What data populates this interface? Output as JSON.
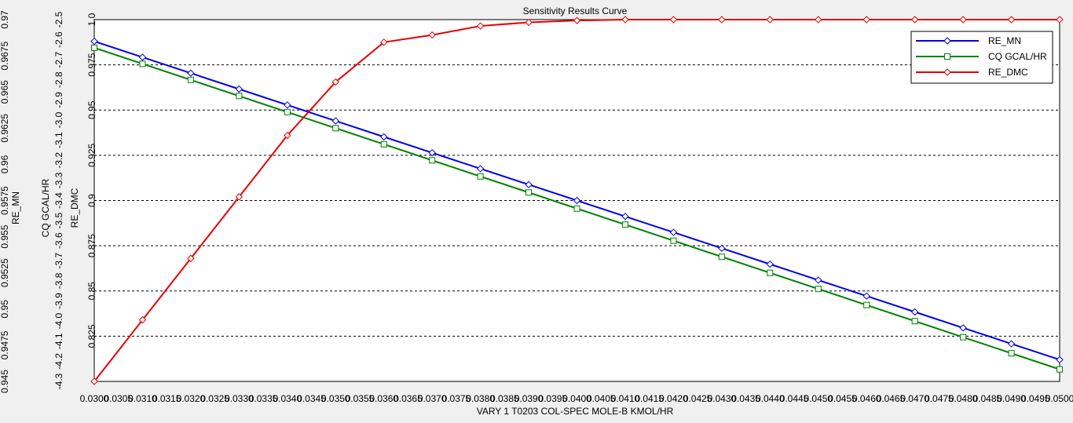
{
  "chart_data": {
    "type": "line",
    "title": "Sensitivity Results Curve",
    "xlabel": "VARY   1 T0203 COL-SPEC MOLE-B KMOL/HR",
    "xlim": [
      0.03,
      0.05
    ],
    "x": [
      0.03,
      0.031,
      0.032,
      0.033,
      0.034,
      0.035,
      0.036,
      0.037,
      0.038,
      0.039,
      0.04,
      0.041,
      0.042,
      0.043,
      0.044,
      0.045,
      0.046,
      0.047,
      0.048,
      0.049,
      0.05
    ],
    "x_tick_labels": [
      "0.0300",
      "0.0305",
      "0.0310",
      "0.0315",
      "0.0320",
      "0.0325",
      "0.0330",
      "0.0335",
      "0.0340",
      "0.0345",
      "0.0350",
      "0.0355",
      "0.0360",
      "0.0365",
      "0.0370",
      "0.0375",
      "0.0380",
      "0.0385",
      "0.0390",
      "0.0395",
      "0.0400",
      "0.0405",
      "0.0410",
      "0.0415",
      "0.0420",
      "0.0425",
      "0.0430",
      "0.0435",
      "0.0440",
      "0.0445",
      "0.0450",
      "0.0455",
      "0.0460",
      "0.0465",
      "0.0470",
      "0.0475",
      "0.0480",
      "0.0485",
      "0.0490",
      "0.0495",
      "0.0500"
    ],
    "grid": "horizontal dashed",
    "legend_position": "top-right",
    "axes": [
      {
        "label": "RE_MN",
        "ylim": [
          0.945,
          0.97
        ],
        "tick_labels": [
          "0.945",
          "0.9475",
          "0.95",
          "0.9525",
          "0.955",
          "0.9575",
          "0.96",
          "0.9625",
          "0.965",
          "0.9675",
          "0.97"
        ]
      },
      {
        "label": "CQ GCAL/HR",
        "ylim": [
          -4.3,
          -2.5
        ],
        "tick_labels": [
          "-4.3",
          "-4.2",
          "-4.1",
          "-4.0",
          "-3.9",
          "-3.8",
          "-3.7",
          "-3.6",
          "-3.5",
          "-3.4",
          "-3.3",
          "-3.2",
          "-3.1",
          "-3.0",
          "-2.9",
          "-2.8",
          "-2.7",
          "-2.6",
          "-2.5"
        ]
      },
      {
        "label": "RE_DMC",
        "ylim": [
          0.8,
          1.0
        ],
        "tick_labels": [
          "0.825",
          "0.85",
          "0.875",
          "0.9",
          "0.925",
          "0.95",
          "0.975",
          "1.0"
        ]
      }
    ],
    "series": [
      {
        "name": "RE_MN",
        "axis": 0,
        "color": "#0000e6",
        "marker": "diamond",
        "values": [
          0.9685,
          0.9674,
          0.9663,
          0.9652,
          0.9641,
          0.963,
          0.9619,
          0.9608,
          0.9597,
          0.9586,
          0.9575,
          0.9564,
          0.9553,
          0.9542,
          0.9531,
          0.952,
          0.9509,
          0.9498,
          0.9487,
          0.9476,
          0.9465
        ]
      },
      {
        "name": "CQ GCAL/HR",
        "axis": 1,
        "color": "#008000",
        "marker": "square",
        "values": [
          -2.64,
          -2.72,
          -2.8,
          -2.88,
          -2.96,
          -3.04,
          -3.12,
          -3.2,
          -3.28,
          -3.36,
          -3.44,
          -3.52,
          -3.6,
          -3.68,
          -3.76,
          -3.84,
          -3.92,
          -4.0,
          -4.08,
          -4.16,
          -4.24
        ]
      },
      {
        "name": "RE_DMC",
        "axis": 2,
        "color": "#e60000",
        "marker": "diamond",
        "values": [
          0.8,
          0.834,
          0.868,
          0.902,
          0.936,
          0.9655,
          0.9875,
          0.9915,
          0.9965,
          0.9985,
          0.9995,
          1.0,
          1.0,
          1.0,
          1.0,
          1.0,
          1.0,
          1.0,
          1.0,
          1.0,
          1.0
        ]
      }
    ]
  }
}
